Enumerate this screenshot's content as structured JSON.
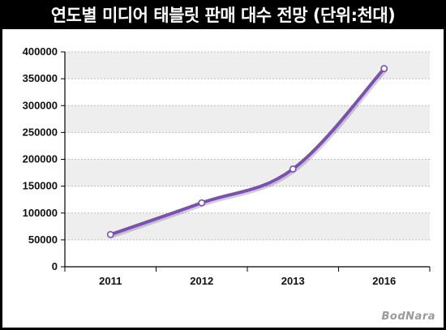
{
  "title": "연도별 미디어 태블릿 판매 대수 전망 (단위:천대)",
  "watermark": "BodNara",
  "colors": {
    "line": "#7b4fb4",
    "point_fill": "#ffffff",
    "band": "#eeeeee",
    "grid": "#bdbdbd",
    "frame": "#000000"
  },
  "chart_data": {
    "type": "line",
    "title": "연도별 미디어 태블릿 판매 대수 전망 (단위:천대)",
    "xlabel": "",
    "ylabel": "",
    "categories": [
      "2011",
      "2012",
      "2013",
      "2016"
    ],
    "series": [
      {
        "values": [
          60000,
          119000,
          182000,
          369000
        ]
      }
    ],
    "ylim": [
      0,
      400000
    ],
    "yticks": [
      0,
      50000,
      100000,
      150000,
      200000,
      250000,
      300000,
      350000,
      400000
    ],
    "grid": true,
    "legend": "none"
  }
}
